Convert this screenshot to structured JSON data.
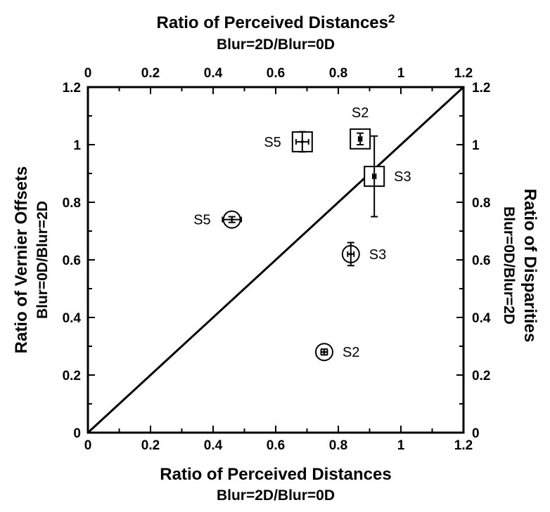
{
  "chart_data": {
    "type": "scatter",
    "top_axis": {
      "title": "Ratio of Perceived Distances",
      "title_superscript": "2",
      "subtitle": "Blur=2D/Blur=0D",
      "range": [
        0,
        1.2
      ],
      "ticks": [
        "0",
        "0.2",
        "0.4",
        "0.6",
        "0.8",
        "1",
        "1.2"
      ]
    },
    "bottom_axis": {
      "title": "Ratio of Perceived Distances",
      "subtitle": "Blur=2D/Blur=0D",
      "range": [
        0,
        1.2
      ],
      "ticks": [
        "0",
        "0.2",
        "0.4",
        "0.6",
        "0.8",
        "1",
        "1.2"
      ]
    },
    "left_axis": {
      "title": "Ratio of Vernier Offsets",
      "subtitle": "Blur=0D/Blur=2D",
      "range": [
        0,
        1.2
      ],
      "ticks": [
        "0",
        "0.2",
        "0.4",
        "0.6",
        "0.8",
        "1",
        "1.2"
      ]
    },
    "right_axis": {
      "title": "Ratio of Disparities",
      "subtitle": "Blur=0D/Blur=2D",
      "range": [
        0,
        1.2
      ],
      "ticks": [
        "0",
        "0.2",
        "0.4",
        "0.6",
        "0.8",
        "1",
        "1.2"
      ]
    },
    "reference_line": {
      "from": [
        0,
        0
      ],
      "to": [
        1.2,
        1.2
      ]
    },
    "series": [
      {
        "marker": "circle",
        "points": [
          {
            "label": "S5",
            "x": 0.46,
            "y": 0.74,
            "xerr": 0.03,
            "yerr": 0.01
          },
          {
            "label": "S3",
            "x": 0.84,
            "y": 0.62,
            "xerr": 0.01,
            "yerr": 0.04
          },
          {
            "label": "S2",
            "x": 0.755,
            "y": 0.28,
            "xerr": 0.01,
            "yerr": 0.01
          }
        ]
      },
      {
        "marker": "square",
        "points": [
          {
            "label": "S5",
            "x": 0.685,
            "y": 1.01,
            "xerr": 0.02,
            "yerr": 0.035
          },
          {
            "label": "S2",
            "x": 0.87,
            "y": 1.02,
            "xerr": 0.005,
            "yerr": 0.02
          },
          {
            "label": "S3",
            "x": 0.915,
            "y": 0.89,
            "xerr": 0.005,
            "yerr": 0.14
          }
        ]
      }
    ]
  }
}
